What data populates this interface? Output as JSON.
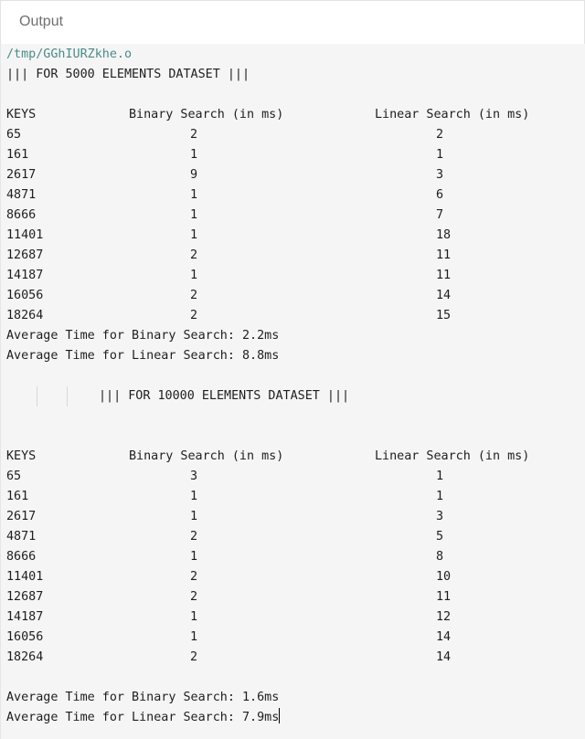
{
  "header": {
    "title": "Output"
  },
  "console": {
    "path": "/tmp/GGhIURZkhe.o",
    "dataset1": {
      "heading": "||| FOR 5000 ELEMENTS DATASET |||",
      "col_keys": "KEYS",
      "col_binary": "Binary Search (in ms)",
      "col_linear": "Linear Search (in ms)",
      "rows": [
        {
          "key": "65",
          "binary": "2",
          "linear": "2"
        },
        {
          "key": "161",
          "binary": "1",
          "linear": "1"
        },
        {
          "key": "2617",
          "binary": "9",
          "linear": "3"
        },
        {
          "key": "4871",
          "binary": "1",
          "linear": "6"
        },
        {
          "key": "8666",
          "binary": "1",
          "linear": "7"
        },
        {
          "key": "11401",
          "binary": "1",
          "linear": "18"
        },
        {
          "key": "12687",
          "binary": "2",
          "linear": "11"
        },
        {
          "key": "14187",
          "binary": "1",
          "linear": "11"
        },
        {
          "key": "16056",
          "binary": "2",
          "linear": "14"
        },
        {
          "key": "18264",
          "binary": "2",
          "linear": "15"
        }
      ],
      "avg_binary": "Average Time for Binary Search: 2.2ms",
      "avg_linear": "Average Time for Linear Search: 8.8ms"
    },
    "dataset2": {
      "heading": "||| FOR 10000 ELEMENTS DATASET |||",
      "col_keys": "KEYS",
      "col_binary": "Binary Search (in ms)",
      "col_linear": "Linear Search (in ms)",
      "rows": [
        {
          "key": "65",
          "binary": "3",
          "linear": "1"
        },
        {
          "key": "161",
          "binary": "1",
          "linear": "1"
        },
        {
          "key": "2617",
          "binary": "1",
          "linear": "3"
        },
        {
          "key": "4871",
          "binary": "2",
          "linear": "5"
        },
        {
          "key": "8666",
          "binary": "1",
          "linear": "8"
        },
        {
          "key": "11401",
          "binary": "2",
          "linear": "10"
        },
        {
          "key": "12687",
          "binary": "2",
          "linear": "11"
        },
        {
          "key": "14187",
          "binary": "1",
          "linear": "12"
        },
        {
          "key": "16056",
          "binary": "1",
          "linear": "14"
        },
        {
          "key": "18264",
          "binary": "2",
          "linear": "14"
        }
      ],
      "avg_binary": "Average Time for Binary Search: 1.6ms",
      "avg_linear": "Average Time for Linear Search: 7.9ms"
    }
  }
}
